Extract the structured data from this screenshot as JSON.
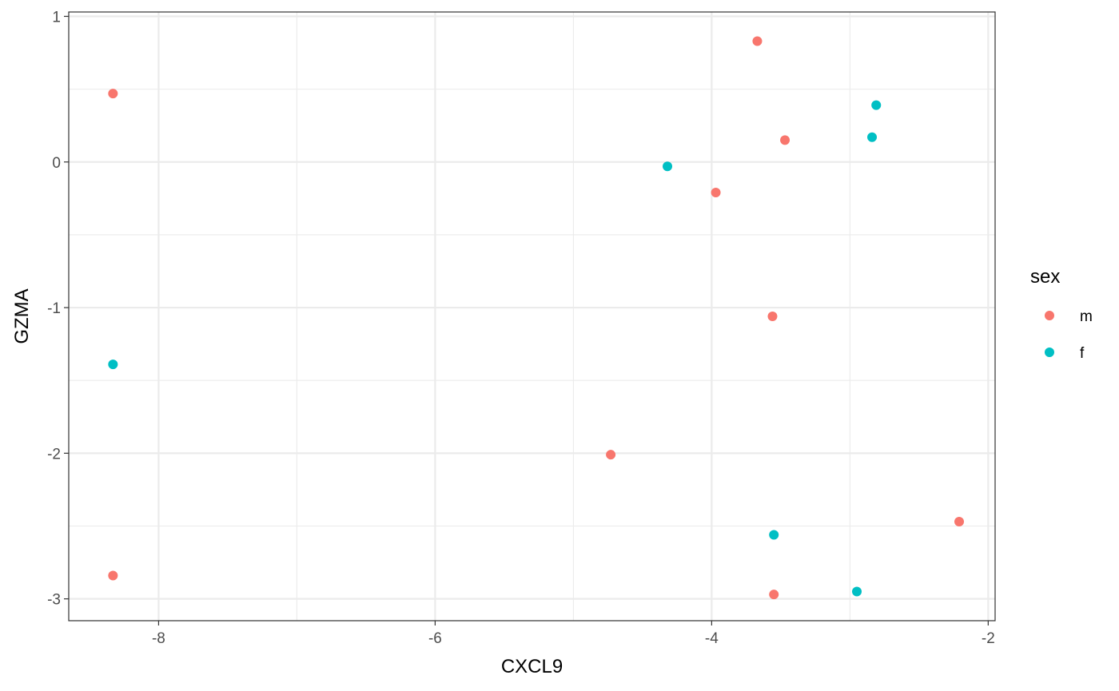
{
  "chart_data": {
    "type": "scatter",
    "xlabel": "CXCL9",
    "ylabel": "GZMA",
    "xlim": [
      -8.65,
      -1.95
    ],
    "ylim": [
      -3.15,
      1.03
    ],
    "x_ticks": [
      -8,
      -6,
      -4,
      -2
    ],
    "x_tick_labels": [
      "-8",
      "-6",
      "-4",
      "-2"
    ],
    "y_ticks": [
      -3,
      -2,
      -1,
      0,
      1
    ],
    "y_tick_labels": [
      "-3",
      "-2",
      "-1",
      "0",
      "1"
    ],
    "grid": true,
    "legend": {
      "title": "sex",
      "placement": "right"
    },
    "series": [
      {
        "name": "m",
        "color": "#F8766D",
        "points": [
          {
            "x": -8.33,
            "y": 0.47
          },
          {
            "x": -8.33,
            "y": -2.84
          },
          {
            "x": -3.67,
            "y": 0.83
          },
          {
            "x": -3.47,
            "y": 0.15
          },
          {
            "x": -3.97,
            "y": -0.21
          },
          {
            "x": -3.56,
            "y": -1.06
          },
          {
            "x": -4.73,
            "y": -2.01
          },
          {
            "x": -2.21,
            "y": -2.47
          },
          {
            "x": -3.55,
            "y": -2.97
          }
        ]
      },
      {
        "name": "f",
        "color": "#00BFC4",
        "points": [
          {
            "x": -8.33,
            "y": -1.39
          },
          {
            "x": -4.32,
            "y": -0.03
          },
          {
            "x": -2.81,
            "y": 0.39
          },
          {
            "x": -2.84,
            "y": 0.17
          },
          {
            "x": -3.55,
            "y": -2.56
          },
          {
            "x": -2.95,
            "y": -2.95
          }
        ]
      }
    ]
  }
}
